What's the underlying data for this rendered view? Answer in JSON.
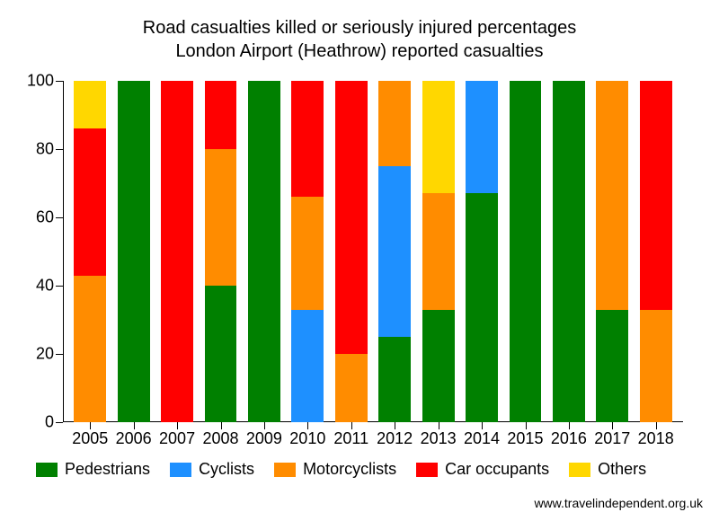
{
  "chart": {
    "type": "stacked-bar",
    "title_line1": "Road casualties killed or seriously injured percentages",
    "title_line2": "London Airport (Heathrow) reported casualties",
    "title_fontsize": 20,
    "background_color": "#ffffff",
    "axis_color": "#000000",
    "label_fontsize": 18,
    "ylim": [
      0,
      100
    ],
    "ytick_step": 20,
    "yticks": [
      0,
      20,
      40,
      60,
      80,
      100
    ],
    "bar_width_ratio": 0.74,
    "series": [
      {
        "key": "pedestrians",
        "label": "Pedestrians",
        "color": "#008000"
      },
      {
        "key": "cyclists",
        "label": "Cyclists",
        "color": "#1e90ff"
      },
      {
        "key": "motorcyclists",
        "label": "Motorcyclists",
        "color": "#ff8c00"
      },
      {
        "key": "car_occupants",
        "label": "Car occupants",
        "color": "#ff0000"
      },
      {
        "key": "others",
        "label": "Others",
        "color": "#ffd700"
      }
    ],
    "categories": [
      "2005",
      "2006",
      "2007",
      "2008",
      "2009",
      "2010",
      "2011",
      "2012",
      "2013",
      "2014",
      "2015",
      "2016",
      "2017",
      "2018"
    ],
    "data": [
      {
        "pedestrians": 0,
        "cyclists": 0,
        "motorcyclists": 43,
        "car_occupants": 43,
        "others": 14
      },
      {
        "pedestrians": 100,
        "cyclists": 0,
        "motorcyclists": 0,
        "car_occupants": 0,
        "others": 0
      },
      {
        "pedestrians": 0,
        "cyclists": 0,
        "motorcyclists": 0,
        "car_occupants": 100,
        "others": 0
      },
      {
        "pedestrians": 40,
        "cyclists": 0,
        "motorcyclists": 40,
        "car_occupants": 20,
        "others": 0
      },
      {
        "pedestrians": 100,
        "cyclists": 0,
        "motorcyclists": 0,
        "car_occupants": 0,
        "others": 0
      },
      {
        "pedestrians": 0,
        "cyclists": 33,
        "motorcyclists": 33,
        "car_occupants": 34,
        "others": 0
      },
      {
        "pedestrians": 0,
        "cyclists": 0,
        "motorcyclists": 20,
        "car_occupants": 80,
        "others": 0
      },
      {
        "pedestrians": 25,
        "cyclists": 50,
        "motorcyclists": 25,
        "car_occupants": 0,
        "others": 0
      },
      {
        "pedestrians": 33,
        "cyclists": 0,
        "motorcyclists": 34,
        "car_occupants": 0,
        "others": 33
      },
      {
        "pedestrians": 67,
        "cyclists": 33,
        "motorcyclists": 0,
        "car_occupants": 0,
        "others": 0
      },
      {
        "pedestrians": 100,
        "cyclists": 0,
        "motorcyclists": 0,
        "car_occupants": 0,
        "others": 0
      },
      {
        "pedestrians": 100,
        "cyclists": 0,
        "motorcyclists": 0,
        "car_occupants": 0,
        "others": 0
      },
      {
        "pedestrians": 33,
        "cyclists": 0,
        "motorcyclists": 67,
        "car_occupants": 0,
        "others": 0
      },
      {
        "pedestrians": 0,
        "cyclists": 0,
        "motorcyclists": 33,
        "car_occupants": 67,
        "others": 0
      }
    ],
    "footer": "www.travelindependent.org.uk",
    "footer_fontsize": 14
  }
}
